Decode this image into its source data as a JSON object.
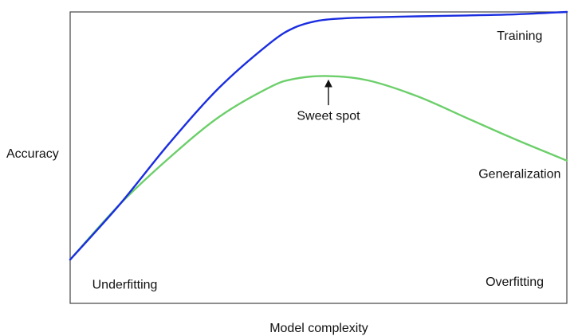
{
  "chart_data": {
    "type": "line",
    "title": "",
    "xlabel": "Model complexity",
    "ylabel": "Accuracy",
    "xlim": [
      0,
      1
    ],
    "ylim": [
      0,
      1
    ],
    "grid": false,
    "legend": "none",
    "series": [
      {
        "name": "Training",
        "color": "#1a2ee0",
        "x": [
          0.0,
          0.1,
          0.2,
          0.3,
          0.4,
          0.45,
          0.5,
          0.55,
          0.6,
          0.7,
          0.8,
          0.9,
          1.0
        ],
        "y": [
          0.15,
          0.34,
          0.55,
          0.74,
          0.89,
          0.945,
          0.97,
          0.978,
          0.981,
          0.985,
          0.988,
          0.992,
          1.0
        ]
      },
      {
        "name": "Generalization",
        "color": "#6ccf6a",
        "x": [
          0.0,
          0.1,
          0.2,
          0.3,
          0.4,
          0.45,
          0.52,
          0.6,
          0.7,
          0.8,
          0.9,
          1.0
        ],
        "y": [
          0.15,
          0.34,
          0.5,
          0.64,
          0.74,
          0.77,
          0.78,
          0.765,
          0.71,
          0.635,
          0.56,
          0.49
        ]
      }
    ],
    "annotations": [
      {
        "text": "Training",
        "x": 0.905,
        "y": 0.905,
        "role": "training-label"
      },
      {
        "text": "Generalization",
        "x": 0.905,
        "y": 0.43,
        "role": "generalization-label"
      },
      {
        "text": "Sweet spot",
        "x": 0.52,
        "y": 0.63,
        "role": "sweet-spot-label",
        "arrow_to": [
          0.52,
          0.755
        ],
        "arrow_from": [
          0.52,
          0.68
        ]
      },
      {
        "text": "Underfitting",
        "x": 0.11,
        "y": 0.05,
        "role": "underfitting-label"
      },
      {
        "text": "Overfitting",
        "x": 0.895,
        "y": 0.06,
        "role": "overfitting-label"
      }
    ]
  }
}
